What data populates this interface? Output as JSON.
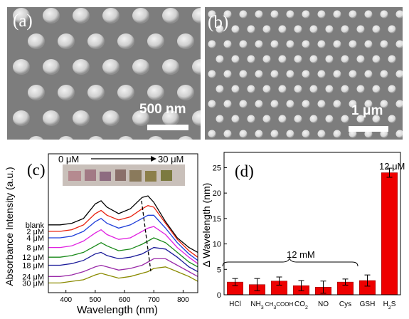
{
  "panels": {
    "a": {
      "label": "(a)",
      "scale_text": "500 nm"
    },
    "b": {
      "label": "(b)",
      "scale_text": "1 μm"
    },
    "c": {
      "label": "(c)",
      "conc_start": "0 μM",
      "conc_end": "30 μM"
    },
    "d": {
      "label": "(d)",
      "group_label": "12 mM",
      "h2s_label": "12 μM"
    }
  },
  "chart_data": [
    {
      "type": "line",
      "xlabel": "Wavelength (nm)",
      "ylabel": "Absorbance Intensity (a.u.)",
      "xlim": [
        340,
        850
      ],
      "xticks": [
        400,
        500,
        600,
        700,
        800
      ],
      "series": [
        {
          "name": "blank",
          "color": "#000000",
          "x": [
            340,
            380,
            420,
            460,
            500,
            520,
            540,
            580,
            620,
            660,
            680,
            700,
            740,
            780,
            820,
            850
          ],
          "y": [
            0.8,
            0.8,
            0.81,
            0.84,
            0.93,
            0.95,
            0.91,
            0.87,
            0.9,
            0.97,
            0.98,
            0.94,
            0.82,
            0.72,
            0.66,
            0.63
          ]
        },
        {
          "name": "2 μM",
          "color": "#e8200e",
          "x": [
            340,
            380,
            420,
            460,
            500,
            520,
            540,
            580,
            620,
            660,
            680,
            700,
            740,
            780,
            820,
            850
          ],
          "y": [
            0.76,
            0.76,
            0.77,
            0.8,
            0.87,
            0.89,
            0.86,
            0.83,
            0.85,
            0.9,
            0.92,
            0.91,
            0.81,
            0.71,
            0.64,
            0.6
          ]
        },
        {
          "name": "4 μM",
          "color": "#1f3ed9",
          "x": [
            340,
            380,
            420,
            460,
            500,
            520,
            540,
            580,
            620,
            660,
            680,
            700,
            740,
            780,
            820,
            850
          ],
          "y": [
            0.72,
            0.72,
            0.73,
            0.76,
            0.82,
            0.84,
            0.81,
            0.78,
            0.8,
            0.84,
            0.86,
            0.86,
            0.78,
            0.69,
            0.62,
            0.58
          ]
        },
        {
          "name": "8 μM",
          "color": "#e020e0",
          "x": [
            340,
            380,
            420,
            460,
            500,
            520,
            540,
            580,
            620,
            660,
            680,
            700,
            740,
            780,
            820,
            850
          ],
          "y": [
            0.66,
            0.66,
            0.67,
            0.7,
            0.75,
            0.77,
            0.74,
            0.71,
            0.72,
            0.76,
            0.78,
            0.79,
            0.74,
            0.66,
            0.6,
            0.56
          ]
        },
        {
          "name": "12 μM",
          "color": "#1a8a1a",
          "x": [
            340,
            380,
            420,
            460,
            500,
            520,
            540,
            580,
            620,
            660,
            680,
            700,
            740,
            780,
            820,
            850
          ],
          "y": [
            0.6,
            0.6,
            0.61,
            0.63,
            0.67,
            0.69,
            0.67,
            0.64,
            0.65,
            0.68,
            0.7,
            0.72,
            0.69,
            0.63,
            0.57,
            0.54
          ]
        },
        {
          "name": "18 μM",
          "color": "#1a1a99",
          "x": [
            340,
            380,
            420,
            460,
            500,
            520,
            540,
            580,
            620,
            660,
            680,
            700,
            740,
            780,
            820,
            850
          ],
          "y": [
            0.55,
            0.55,
            0.56,
            0.58,
            0.62,
            0.63,
            0.61,
            0.59,
            0.6,
            0.62,
            0.64,
            0.66,
            0.65,
            0.6,
            0.54,
            0.51
          ]
        },
        {
          "name": "24 μM",
          "color": "#9a2aa8",
          "x": [
            340,
            380,
            420,
            460,
            500,
            520,
            540,
            580,
            620,
            660,
            680,
            700,
            740,
            780,
            820,
            850
          ],
          "y": [
            0.48,
            0.48,
            0.49,
            0.51,
            0.54,
            0.55,
            0.54,
            0.52,
            0.53,
            0.55,
            0.57,
            0.59,
            0.59,
            0.55,
            0.51,
            0.48
          ]
        },
        {
          "name": "30 μM",
          "color": "#8a8a00",
          "x": [
            340,
            380,
            420,
            460,
            500,
            520,
            540,
            580,
            620,
            660,
            680,
            700,
            740,
            780,
            820,
            850
          ],
          "y": [
            0.44,
            0.44,
            0.45,
            0.46,
            0.49,
            0.5,
            0.49,
            0.47,
            0.48,
            0.5,
            0.51,
            0.53,
            0.54,
            0.51,
            0.48,
            0.45
          ]
        }
      ]
    },
    {
      "type": "bar",
      "categories": [
        "HCl",
        "NH3",
        "CH3COOH",
        "CO2",
        "NO",
        "Cys",
        "GSH",
        "H2S"
      ],
      "category_labels": [
        {
          "main": "HCl",
          "sub": "",
          "tail": ""
        },
        {
          "main": "NH",
          "sub": "3",
          "tail": ""
        },
        {
          "main": "CH",
          "sub": "3",
          "tail": "COOH"
        },
        {
          "main": "CO",
          "sub": "2",
          "tail": ""
        },
        {
          "main": "NO",
          "sub": "",
          "tail": ""
        },
        {
          "main": "Cys",
          "sub": "",
          "tail": ""
        },
        {
          "main": "GSH",
          "sub": "",
          "tail": ""
        },
        {
          "main": "H",
          "sub": "2",
          "tail": "S"
        }
      ],
      "values": [
        2.5,
        2.0,
        2.7,
        1.8,
        1.5,
        2.5,
        2.8,
        24.0
      ],
      "errors": [
        0.7,
        1.2,
        0.8,
        1.0,
        1.2,
        0.6,
        1.1,
        0.9
      ],
      "ylabel": "Δ Wavelength (nm)",
      "ylim": [
        0,
        28
      ],
      "yticks": [
        0,
        5,
        10,
        15,
        20,
        25
      ],
      "bar_color": "#ee0000"
    }
  ]
}
